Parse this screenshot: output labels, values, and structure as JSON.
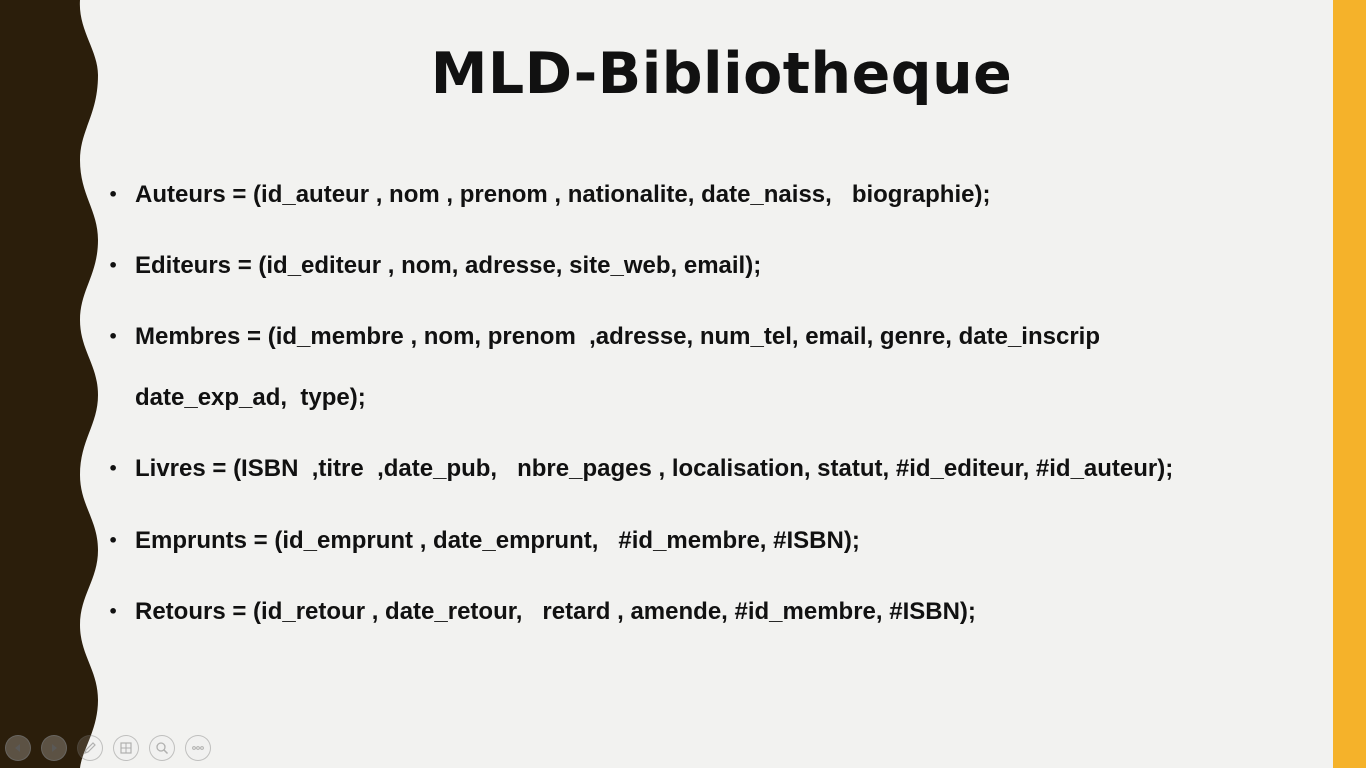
{
  "slide": {
    "title": "MLD-Bibliotheque",
    "colors": {
      "background": "#f2f2f0",
      "left_band": "#2b1e0b",
      "right_band": "#f5b22a",
      "text": "#111111"
    },
    "bullets": [
      {
        "bullet": "•",
        "text": "Auteurs = (id_auteur , nom , prenom , nationalite, date_naiss,   biographie);"
      },
      {
        "bullet": "•",
        "text": "Editeurs = (id_editeur , nom, adresse, site_web, email);"
      },
      {
        "bullet": "•",
        "text": "Membres = (id_membre , nom, prenom  ,adresse, num_tel, email, genre, date_inscrip",
        "continuation": "date_exp_ad,  type);"
      },
      {
        "bullet": "•",
        "text": "Livres = (ISBN  ,titre  ,date_pub,   nbre_pages , localisation, statut, #id_editeur, #id_auteur);"
      },
      {
        "bullet": "•",
        "text": "Emprunts = (id_emprunt , date_emprunt,   #id_membre, #ISBN);"
      },
      {
        "bullet": "•",
        "text": "Retours = (id_retour , date_retour,   retard , amende, #id_membre, #ISBN);"
      }
    ]
  },
  "navigation": {
    "buttons": [
      {
        "icon": "previous-slide-icon"
      },
      {
        "icon": "next-slide-icon"
      },
      {
        "icon": "pen-icon"
      },
      {
        "icon": "slides-grid-icon"
      },
      {
        "icon": "zoom-icon"
      },
      {
        "icon": "more-options-icon"
      }
    ]
  }
}
